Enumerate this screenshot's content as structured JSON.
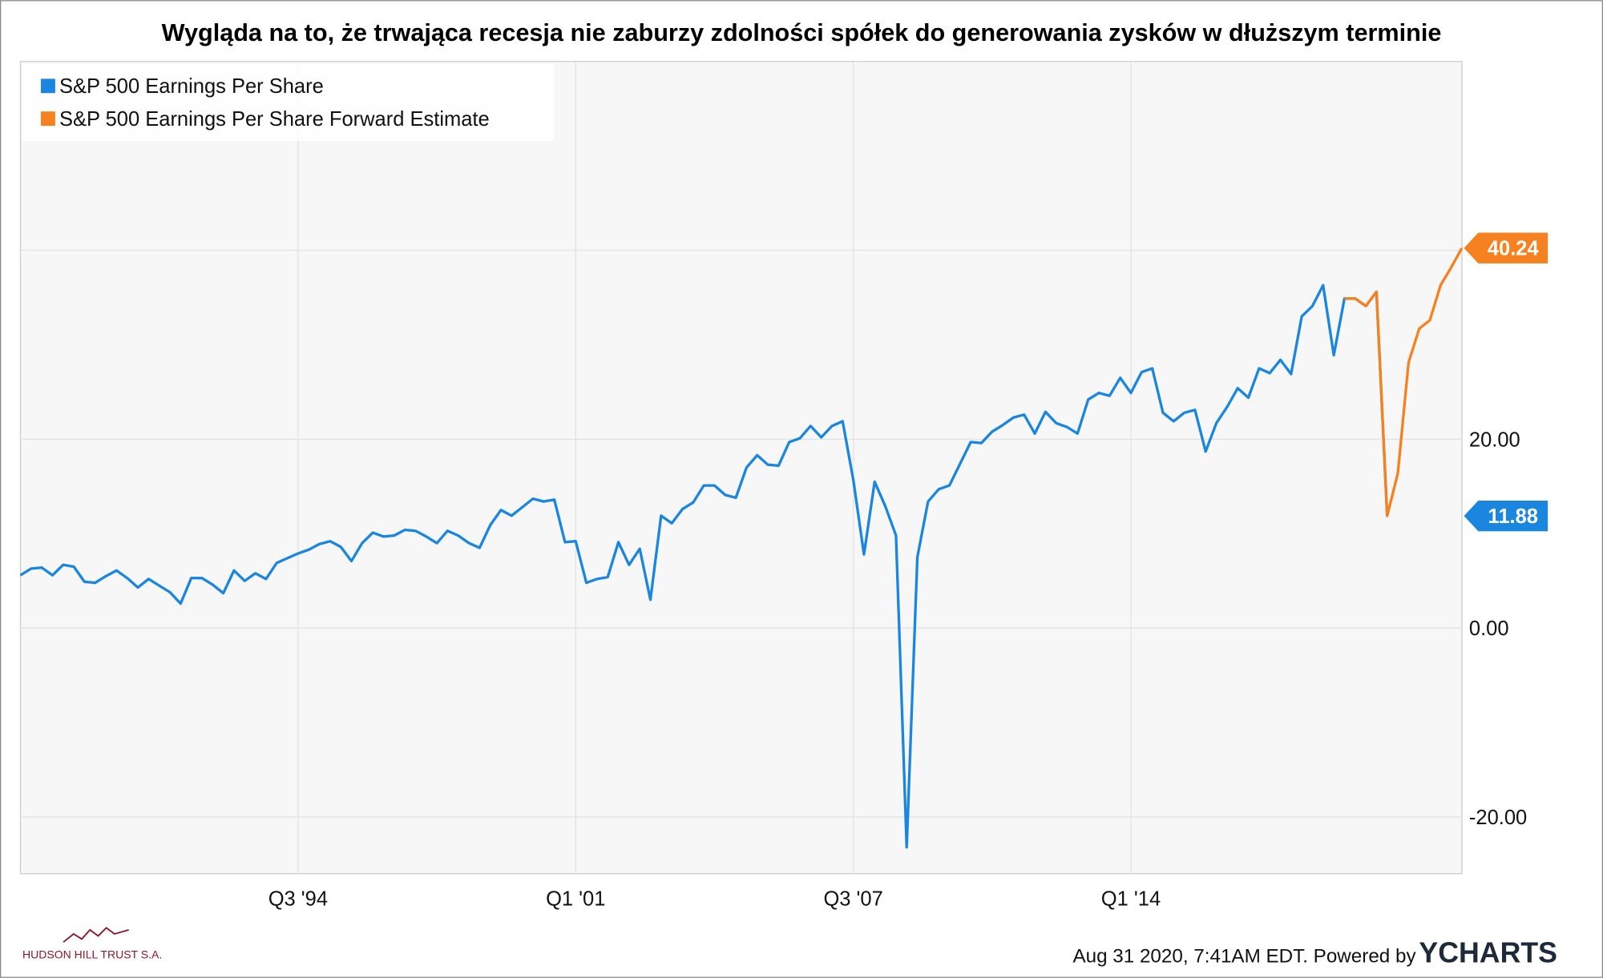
{
  "chart_data": {
    "type": "line",
    "title": "Wygląda na to, że trwająca recesja nie zaburzy zdolności spółek do generowania zysków w dłuższym terminie",
    "footer": "Aug 31 2020, 7:41AM EDT. Powered by",
    "brand": "YCHARTS",
    "logo_text": "HUDSON HILL TRUST S.A.",
    "legend": "top-left",
    "grid": true,
    "xlim": [
      1988.0,
      2021.75
    ],
    "xticks": [
      {
        "value": 1994.5,
        "label": "Q3 '94"
      },
      {
        "value": 2001.0,
        "label": "Q1 '01"
      },
      {
        "value": 2007.5,
        "label": "Q3 '07"
      },
      {
        "value": 2014.0,
        "label": "Q1 '14"
      }
    ],
    "ylim": [
      -26,
      60
    ],
    "yticks": [
      {
        "value": -20,
        "label": "-20.00"
      },
      {
        "value": 0,
        "label": "0.00"
      },
      {
        "value": 20,
        "label": "20.00"
      },
      {
        "value": 40,
        "label": "40.00"
      }
    ],
    "series": [
      {
        "name": "S&P 500 Earnings Per Share",
        "color": "#1a86e0",
        "x": [
          1988,
          1988.25,
          1988.5,
          1988.75,
          1989,
          1989.25,
          1989.5,
          1989.75,
          1990,
          1990.25,
          1990.5,
          1990.75,
          1991,
          1991.25,
          1991.5,
          1991.75,
          1992,
          1992.25,
          1992.5,
          1992.75,
          1993,
          1993.25,
          1993.5,
          1993.75,
          1994,
          1994.25,
          1994.5,
          1994.75,
          1995,
          1995.25,
          1995.5,
          1995.75,
          1996,
          1996.25,
          1996.5,
          1996.75,
          1997,
          1997.25,
          1997.5,
          1997.75,
          1998,
          1998.25,
          1998.5,
          1998.75,
          1999,
          1999.25,
          1999.5,
          1999.75,
          2000,
          2000.25,
          2000.5,
          2000.75,
          2001,
          2001.25,
          2001.5,
          2001.75,
          2002,
          2002.25,
          2002.5,
          2002.75,
          2003,
          2003.25,
          2003.5,
          2003.75,
          2004,
          2004.25,
          2004.5,
          2004.75,
          2005,
          2005.25,
          2005.5,
          2005.75,
          2006,
          2006.25,
          2006.5,
          2006.75,
          2007,
          2007.25,
          2007.5,
          2007.75,
          2008,
          2008.25,
          2008.5,
          2008.75,
          2009,
          2009.25,
          2009.5,
          2009.75,
          2010,
          2010.25,
          2010.5,
          2010.75,
          2011,
          2011.25,
          2011.5,
          2011.75,
          2012,
          2012.25,
          2012.5,
          2012.75,
          2013,
          2013.25,
          2013.5,
          2013.75,
          2014,
          2014.25,
          2014.5,
          2014.75,
          2015,
          2015.25,
          2015.5,
          2015.75,
          2016,
          2016.25,
          2016.5,
          2016.75,
          2017,
          2017.25,
          2017.5,
          2017.75,
          2018,
          2018.25,
          2018.5,
          2018.75,
          2019,
          2019.25,
          2019.5,
          2019.75,
          2020
        ],
        "values": [
          5.6,
          6.3,
          6.4,
          5.6,
          6.7,
          6.5,
          4.9,
          4.8,
          5.5,
          6.1,
          5.3,
          4.3,
          5.2,
          4.5,
          3.8,
          2.6,
          5.3,
          5.3,
          4.6,
          3.7,
          6.1,
          5.0,
          5.8,
          5.2,
          6.9,
          7.4,
          7.9,
          8.3,
          8.9,
          9.2,
          8.6,
          7.1,
          9.0,
          10.1,
          9.7,
          9.8,
          10.4,
          10.3,
          9.7,
          9.0,
          10.3,
          9.8,
          9.0,
          8.5,
          10.9,
          12.5,
          11.9,
          12.8,
          13.7,
          13.4,
          13.6,
          9.1,
          9.2,
          4.8,
          5.2,
          5.4,
          9.1,
          6.7,
          8.4,
          3.0,
          11.9,
          11.1,
          12.6,
          13.3,
          15.1,
          15.1,
          14.1,
          13.8,
          17.0,
          18.3,
          17.3,
          17.2,
          19.7,
          20.1,
          21.4,
          20.2,
          21.4,
          21.9,
          15.7,
          7.8,
          15.5,
          12.9,
          9.8,
          -23.2,
          7.5,
          13.4,
          14.7,
          15.1,
          17.4,
          19.7,
          19.6,
          20.8,
          21.5,
          22.3,
          22.6,
          20.6,
          22.9,
          21.7,
          21.3,
          20.6,
          24.2,
          24.9,
          24.6,
          26.5,
          24.9,
          27.1,
          27.5,
          22.8,
          21.9,
          22.8,
          23.1,
          18.7,
          21.7,
          23.4,
          25.4,
          24.4,
          27.5,
          27.0,
          28.4,
          26.9,
          33.0,
          34.1,
          36.3,
          28.9,
          34.9,
          34.9,
          34.1,
          35.6,
          11.88
        ]
      },
      {
        "name": "S&P 500 Earnings Per Share Forward Estimate",
        "color": "#f5821f",
        "x": [
          2019,
          2019.25,
          2019.5,
          2019.75,
          2020,
          2020.25,
          2020.5,
          2020.75,
          2021,
          2021.25,
          2021.5,
          2021.75
        ],
        "values": [
          34.9,
          34.9,
          34.1,
          35.6,
          11.88,
          16.4,
          28.1,
          31.7,
          32.6,
          36.3,
          38.2,
          40.24
        ]
      }
    ]
  }
}
